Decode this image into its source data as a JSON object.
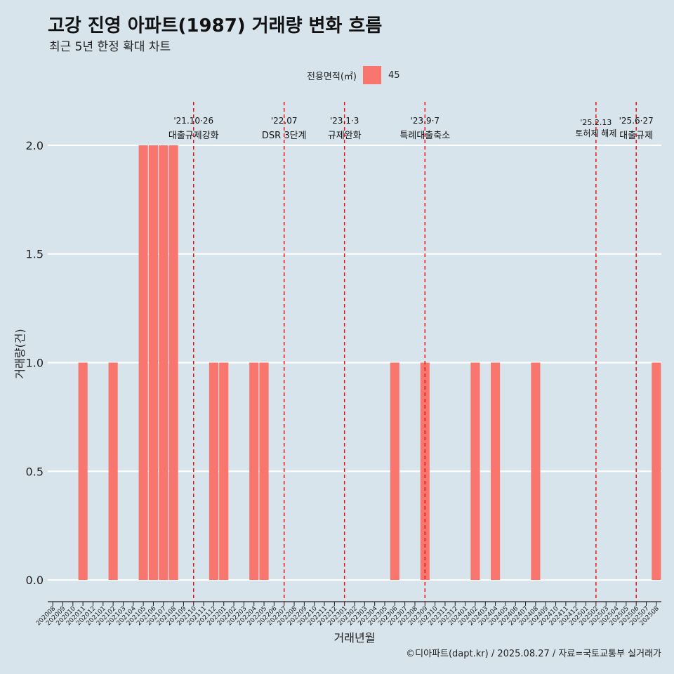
{
  "header": {
    "title": "고강 진영 아파트(1987) 거래량 변화 흐름",
    "subtitle": "최근 5년 한정 확대 차트"
  },
  "legend": {
    "title": "전용면적(㎡)",
    "items": [
      {
        "label": "45",
        "color": "#f8766d"
      }
    ]
  },
  "caption": "©디아파트(dapt.kr) / 2025.08.27 / 자료=국토교통부 실거래가",
  "chart_data": {
    "type": "bar",
    "title": "고강 진영 아파트(1987) 거래량 변화 흐름",
    "xlabel": "거래년월",
    "ylabel": "거래량(건)",
    "ylim": [
      -0.1,
      2.2
    ],
    "yticks": [
      0.0,
      0.5,
      1.0,
      1.5,
      2.0
    ],
    "ytick_labels": [
      "0.0",
      "0.5",
      "1.0",
      "1.5",
      "2.0"
    ],
    "bar_color": "#f8766d",
    "categories": [
      "202008",
      "202009",
      "202010",
      "202011",
      "202012",
      "202101",
      "202102",
      "202103",
      "202104",
      "202105",
      "202106",
      "202107",
      "202108",
      "202109",
      "202110",
      "202111",
      "202112",
      "202201",
      "202202",
      "202203",
      "202204",
      "202205",
      "202206",
      "202207",
      "202208",
      "202209",
      "202210",
      "202211",
      "202212",
      "202301",
      "202302",
      "202303",
      "202304",
      "202305",
      "202306",
      "202307",
      "202308",
      "202309",
      "202310",
      "202311",
      "202312",
      "202401",
      "202402",
      "202403",
      "202404",
      "202405",
      "202406",
      "202407",
      "202408",
      "202409",
      "202410",
      "202411",
      "202412",
      "202501",
      "202502",
      "202503",
      "202504",
      "202505",
      "202506",
      "202507",
      "202508"
    ],
    "values": [
      0,
      0,
      0,
      1,
      0,
      0,
      1,
      0,
      0,
      2,
      2,
      2,
      2,
      0,
      0,
      0,
      1,
      1,
      0,
      0,
      1,
      1,
      0,
      0,
      0,
      0,
      0,
      0,
      0,
      0,
      0,
      0,
      0,
      0,
      1,
      0,
      0,
      1,
      0,
      0,
      0,
      0,
      1,
      0,
      1,
      0,
      0,
      0,
      1,
      0,
      0,
      0,
      0,
      0,
      0,
      0,
      0,
      0,
      0,
      0,
      1
    ],
    "annotations": [
      {
        "x": "202110",
        "date": "'21.10·26",
        "text": "대출규제강화"
      },
      {
        "x": "202207",
        "date": "'22.07",
        "text": "DSR 3단계"
      },
      {
        "x": "202301",
        "date": "'23.1·3",
        "text": "규제완화"
      },
      {
        "x": "202309",
        "date": "'23.9·7",
        "text": "특례대출축소"
      },
      {
        "x": "202502",
        "date": "'25.2.13",
        "text": "토허제 해제"
      },
      {
        "x": "202506",
        "date": "'25.6·27",
        "text": "대출규제"
      }
    ]
  }
}
